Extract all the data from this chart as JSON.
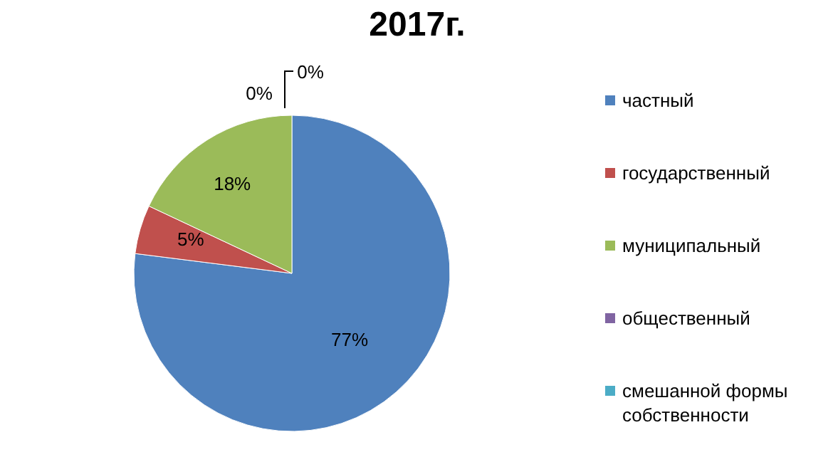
{
  "chart_data": {
    "type": "pie",
    "title": "2017г.",
    "categories": [
      "частный",
      "государственный",
      "муниципальный",
      "общественный",
      "смешанной формы собственности"
    ],
    "values": [
      77,
      5,
      18,
      0,
      0
    ],
    "value_labels": [
      "77%",
      "5%",
      "18%",
      "0%",
      "0%"
    ],
    "colors": [
      "#4f81bd",
      "#c0504d",
      "#9bbb59",
      "#8064a2",
      "#4bacc6"
    ],
    "legend": "right"
  }
}
